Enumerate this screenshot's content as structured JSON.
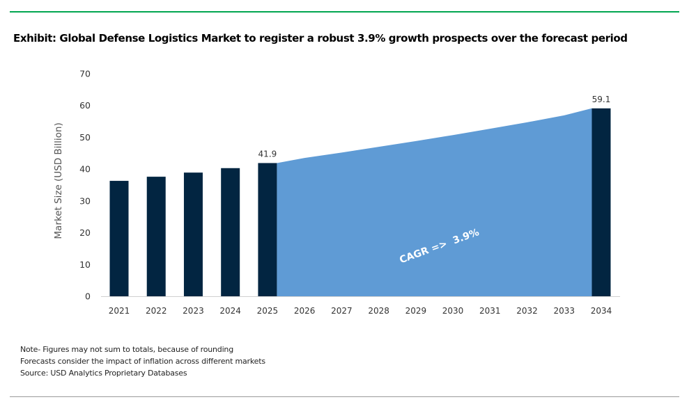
{
  "title": "Exhibit: Global Defense Logistics Market to register a robust 3.9% growth prospects over the forecast period",
  "notes": [
    "Note- Figures may not sum to totals, because of rounding",
    "Forecasts consider the impact of inflation across different markets",
    "Source: USD Analytics Proprietary Databases"
  ],
  "colors": {
    "bar": "#022541",
    "area": "#5f9bd5",
    "top_rule": "#00a650",
    "bottom_rule": "#9a9a9a"
  },
  "chart_data": {
    "type": "bar",
    "title": "",
    "ylabel": "Market Size (USD Billion)",
    "xlabel": "",
    "ylim": [
      0,
      70
    ],
    "yticks": [
      0,
      10,
      20,
      30,
      40,
      50,
      60,
      70
    ],
    "grid": false,
    "categories": [
      "2021",
      "2022",
      "2023",
      "2024",
      "2025",
      "2026",
      "2027",
      "2028",
      "2029",
      "2030",
      "2031",
      "2032",
      "2033",
      "2034"
    ],
    "bars": [
      {
        "x": "2021",
        "value": 36.3
      },
      {
        "x": "2022",
        "value": 37.6
      },
      {
        "x": "2023",
        "value": 38.9
      },
      {
        "x": "2024",
        "value": 40.3
      },
      {
        "x": "2025",
        "value": 41.9,
        "label": "41.9"
      },
      {
        "x": "2034",
        "value": 59.1,
        "label": "59.1"
      }
    ],
    "area": {
      "type": "area",
      "x": [
        "2025",
        "2026",
        "2027",
        "2028",
        "2029",
        "2030",
        "2031",
        "2032",
        "2033",
        "2034"
      ],
      "values": [
        41.9,
        43.5,
        45.2,
        47.0,
        48.8,
        50.7,
        52.7,
        54.7,
        56.9,
        59.1
      ]
    },
    "annotation": "CAGR =>  3.9%"
  }
}
